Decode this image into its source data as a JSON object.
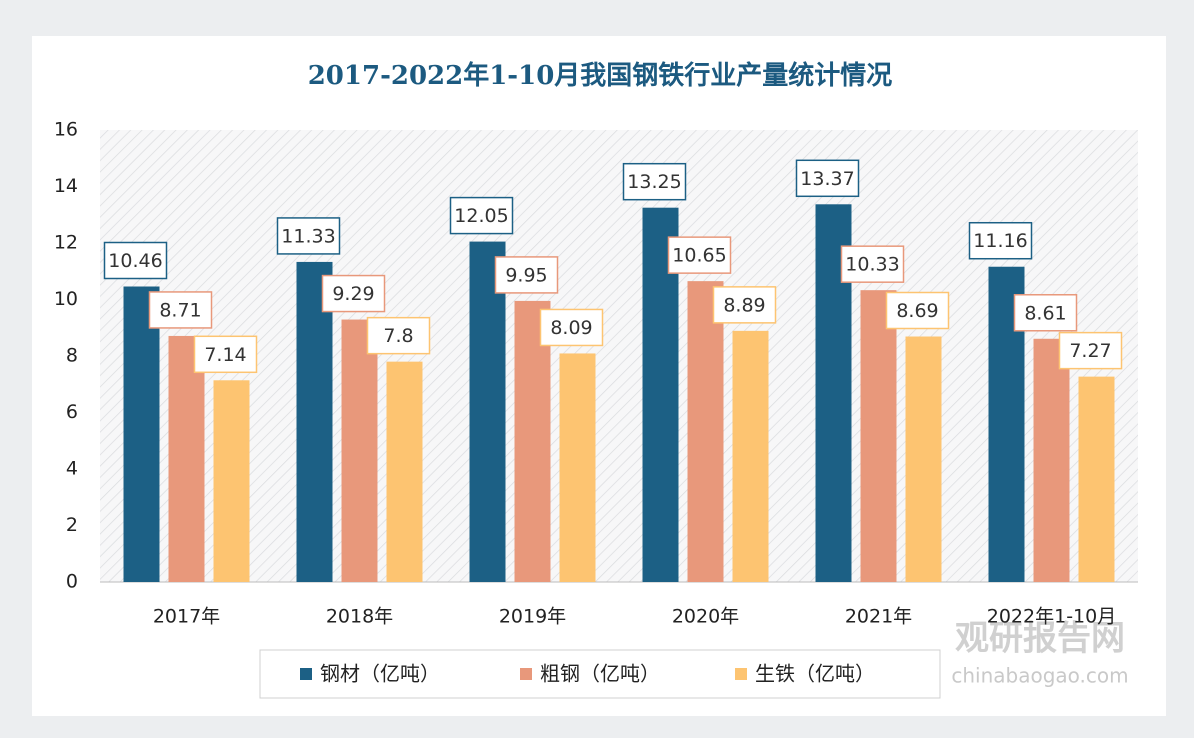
{
  "chart_data": {
    "type": "bar",
    "title": "2017-2022年1-10月我国钢铁行业产量统计情况",
    "categories": [
      "2017年",
      "2018年",
      "2019年",
      "2020年",
      "2021年",
      "2022年1-10月"
    ],
    "series": [
      {
        "name": "钢材（亿吨）",
        "color": "#1c6085",
        "values": [
          10.46,
          11.33,
          12.05,
          13.25,
          13.37,
          11.16
        ]
      },
      {
        "name": "粗钢（亿吨）",
        "color": "#e8987b",
        "values": [
          8.71,
          9.29,
          9.95,
          10.65,
          10.33,
          8.61
        ]
      },
      {
        "name": "生铁（亿吨）",
        "color": "#fdc471",
        "values": [
          7.14,
          7.8,
          8.09,
          8.89,
          8.69,
          7.27
        ]
      }
    ],
    "ylim": [
      0,
      16
    ],
    "yticks": [
      0,
      2,
      4,
      6,
      8,
      10,
      12,
      14,
      16
    ],
    "legend": "bottom"
  },
  "watermark": {
    "brand": "观研报告网",
    "url": "chinabaogao.com"
  }
}
